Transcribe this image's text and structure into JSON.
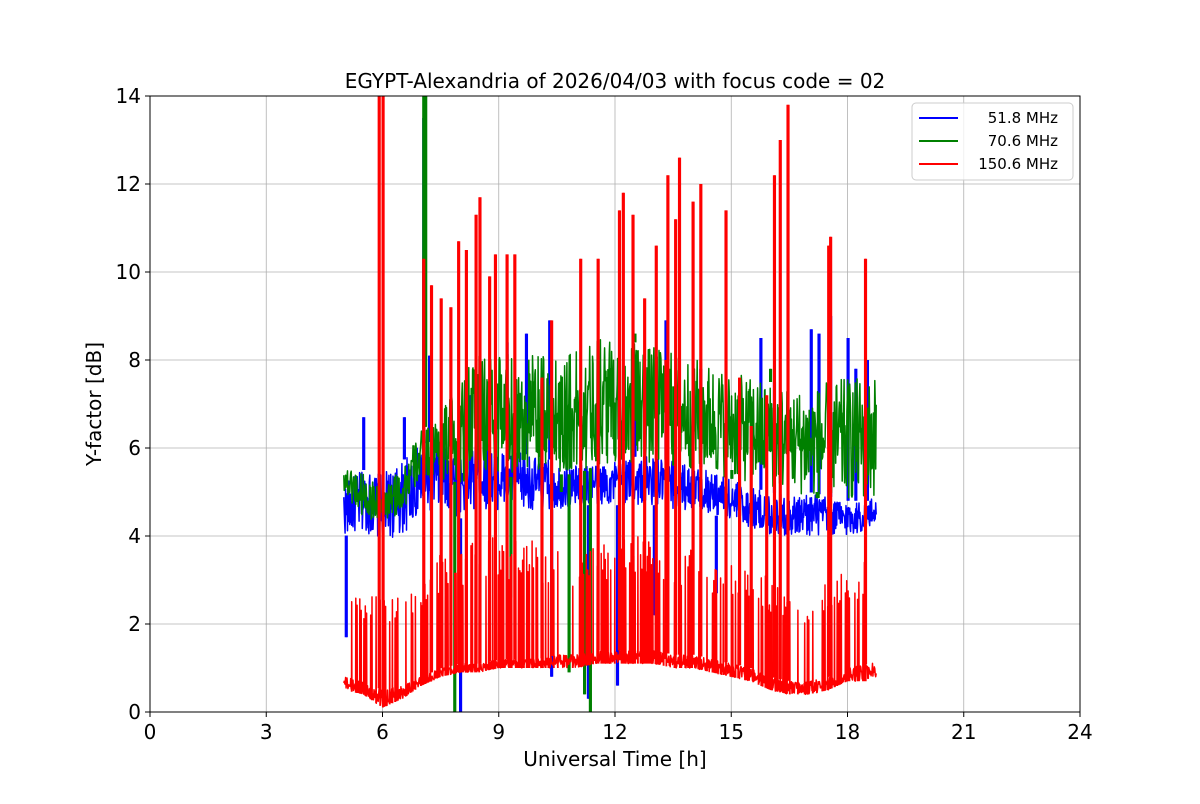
{
  "chart_data": {
    "type": "line",
    "title": "EGYPT-Alexandria of 2026/04/03 with focus code = 02",
    "xlabel": "Universal Time [h]",
    "ylabel": "Y-factor [dB]",
    "xlim": [
      0,
      24
    ],
    "ylim": [
      0,
      14
    ],
    "xticks": [
      0,
      3,
      6,
      9,
      12,
      15,
      18,
      21,
      24
    ],
    "yticks": [
      0,
      2,
      4,
      6,
      8,
      10,
      12,
      14
    ],
    "grid": true,
    "legend_position": "top-right",
    "series": [
      {
        "name": "51.8 MHz",
        "color": "#0000ff",
        "band": [
          [
            5.0,
            4.0,
            5.2
          ],
          [
            5.5,
            4.1,
            5.5
          ],
          [
            6.0,
            3.9,
            5.4
          ],
          [
            6.5,
            4.0,
            5.7
          ],
          [
            7.0,
            4.5,
            6.1
          ],
          [
            7.5,
            4.6,
            6.2
          ],
          [
            8.0,
            4.4,
            6.1
          ],
          [
            8.5,
            4.6,
            6.2
          ],
          [
            9.0,
            4.6,
            6.0
          ],
          [
            9.5,
            4.6,
            5.9
          ],
          [
            10.0,
            4.6,
            5.8
          ],
          [
            10.5,
            4.6,
            5.7
          ],
          [
            11.0,
            4.7,
            5.6
          ],
          [
            11.5,
            4.7,
            5.7
          ],
          [
            12.0,
            4.7,
            5.7
          ],
          [
            12.5,
            4.7,
            5.8
          ],
          [
            13.0,
            4.7,
            5.8
          ],
          [
            13.5,
            4.6,
            5.7
          ],
          [
            14.0,
            4.6,
            5.6
          ],
          [
            14.5,
            4.5,
            5.5
          ],
          [
            15.0,
            4.3,
            5.3
          ],
          [
            15.5,
            4.2,
            5.1
          ],
          [
            16.0,
            4.0,
            5.0
          ],
          [
            16.5,
            4.0,
            4.9
          ],
          [
            17.0,
            4.0,
            5.0
          ],
          [
            17.5,
            4.0,
            4.9
          ],
          [
            18.0,
            4.0,
            4.8
          ],
          [
            18.5,
            4.1,
            4.8
          ],
          [
            18.75,
            4.3,
            4.9
          ]
        ],
        "spikes": [
          [
            5.05,
            1.7
          ],
          [
            5.5,
            6.7
          ],
          [
            6.55,
            6.7
          ],
          [
            7.05,
            13.5
          ],
          [
            7.2,
            8.1
          ],
          [
            8.0,
            0.0
          ],
          [
            8.25,
            7.2
          ],
          [
            9.2,
            8.4
          ],
          [
            9.7,
            8.6
          ],
          [
            10.3,
            8.9
          ],
          [
            10.35,
            0.8
          ],
          [
            11.3,
            0.3
          ],
          [
            12.05,
            0.6
          ],
          [
            12.5,
            7.8
          ],
          [
            13.0,
            2.2
          ],
          [
            13.3,
            8.9
          ],
          [
            14.2,
            7.8
          ],
          [
            14.6,
            2.7
          ],
          [
            15.75,
            8.5
          ],
          [
            16.1,
            7.5
          ],
          [
            17.05,
            8.7
          ],
          [
            17.25,
            8.6
          ],
          [
            17.55,
            9.0
          ],
          [
            18.0,
            8.5
          ],
          [
            18.2,
            7.8
          ],
          [
            18.5,
            8.0
          ]
        ]
      },
      {
        "name": "70.6 MHz",
        "color": "#008000",
        "band": [
          [
            5.0,
            5.0,
            5.6
          ],
          [
            5.5,
            4.4,
            5.5
          ],
          [
            6.0,
            4.3,
            5.0
          ],
          [
            6.5,
            4.5,
            5.6
          ],
          [
            7.0,
            5.3,
            6.4
          ],
          [
            7.5,
            5.3,
            6.8
          ],
          [
            8.0,
            5.2,
            7.6
          ],
          [
            8.5,
            5.4,
            8.1
          ],
          [
            9.0,
            5.4,
            8.2
          ],
          [
            9.5,
            5.3,
            8.1
          ],
          [
            10.0,
            5.4,
            8.1
          ],
          [
            10.5,
            5.4,
            8.1
          ],
          [
            11.0,
            5.4,
            8.2
          ],
          [
            11.5,
            5.6,
            8.5
          ],
          [
            12.0,
            5.7,
            8.5
          ],
          [
            12.5,
            5.6,
            8.4
          ],
          [
            13.0,
            5.6,
            8.3
          ],
          [
            13.5,
            5.6,
            8.2
          ],
          [
            14.0,
            5.5,
            8.1
          ],
          [
            14.5,
            5.4,
            7.9
          ],
          [
            15.0,
            5.3,
            7.7
          ],
          [
            15.5,
            5.2,
            7.6
          ],
          [
            16.0,
            5.1,
            7.5
          ],
          [
            16.5,
            5.0,
            7.4
          ],
          [
            17.0,
            4.9,
            7.3
          ],
          [
            17.5,
            4.8,
            7.5
          ],
          [
            18.0,
            4.8,
            7.6
          ],
          [
            18.5,
            4.8,
            7.6
          ],
          [
            18.75,
            4.9,
            7.7
          ]
        ],
        "spikes": [
          [
            7.05,
            14.0
          ],
          [
            7.1,
            14.0
          ],
          [
            7.85,
            0.0
          ],
          [
            8.1,
            6.0
          ],
          [
            8.4,
            5.3
          ],
          [
            9.3,
            2.6
          ],
          [
            10.6,
            5.0
          ],
          [
            10.8,
            0.9
          ],
          [
            11.2,
            0.4
          ],
          [
            11.35,
            0.0
          ],
          [
            12.5,
            8.6
          ],
          [
            13.5,
            7.4
          ],
          [
            15.0,
            5.5
          ],
          [
            16.0,
            7.8
          ],
          [
            17.2,
            5.0
          ]
        ]
      },
      {
        "name": "150.6 MHz",
        "color": "#ff0000",
        "band": [
          [
            5.0,
            0.5,
            0.8
          ],
          [
            5.5,
            0.4,
            0.7
          ],
          [
            6.0,
            0.1,
            0.5
          ],
          [
            6.5,
            0.3,
            0.6
          ],
          [
            7.0,
            0.6,
            0.8
          ],
          [
            7.5,
            0.8,
            1.0
          ],
          [
            8.0,
            0.9,
            1.1
          ],
          [
            8.5,
            0.9,
            1.1
          ],
          [
            9.0,
            1.0,
            1.2
          ],
          [
            9.5,
            1.0,
            1.2
          ],
          [
            10.0,
            1.0,
            1.2
          ],
          [
            10.5,
            1.0,
            1.3
          ],
          [
            11.0,
            1.0,
            1.3
          ],
          [
            11.5,
            1.1,
            1.4
          ],
          [
            12.0,
            1.1,
            1.4
          ],
          [
            12.5,
            1.1,
            1.4
          ],
          [
            13.0,
            1.1,
            1.4
          ],
          [
            13.5,
            1.0,
            1.3
          ],
          [
            14.0,
            1.0,
            1.3
          ],
          [
            14.5,
            0.9,
            1.2
          ],
          [
            15.0,
            0.8,
            1.1
          ],
          [
            15.5,
            0.7,
            1.0
          ],
          [
            16.0,
            0.5,
            0.8
          ],
          [
            16.5,
            0.4,
            0.7
          ],
          [
            17.0,
            0.4,
            0.7
          ],
          [
            17.5,
            0.5,
            0.8
          ],
          [
            18.0,
            0.7,
            1.0
          ],
          [
            18.5,
            0.7,
            1.1
          ],
          [
            18.75,
            0.8,
            1.2
          ]
        ],
        "upper_band": [
          [
            5.2,
            2.8
          ],
          [
            5.7,
            2.7
          ],
          [
            6.3,
            2.7
          ],
          [
            6.8,
            3.0
          ],
          [
            7.2,
            3.3
          ],
          [
            7.5,
            3.6
          ],
          [
            8.0,
            3.8
          ],
          [
            8.5,
            3.9
          ],
          [
            9.0,
            4.0
          ],
          [
            9.5,
            4.0
          ],
          [
            10.0,
            3.9
          ],
          [
            10.5,
            3.8
          ],
          [
            11.0,
            3.8
          ],
          [
            11.5,
            3.8
          ],
          [
            12.0,
            4.0
          ],
          [
            12.5,
            4.0
          ],
          [
            13.0,
            3.9
          ],
          [
            13.5,
            3.8
          ],
          [
            14.0,
            3.7
          ],
          [
            14.5,
            3.6
          ],
          [
            15.0,
            3.5
          ],
          [
            15.5,
            3.4
          ],
          [
            16.0,
            3.0
          ],
          [
            16.5,
            2.6
          ],
          [
            17.0,
            2.6
          ],
          [
            17.5,
            3.0
          ],
          [
            18.0,
            3.3
          ],
          [
            18.5,
            3.5
          ]
        ],
        "spikes": [
          [
            5.9,
            14.0
          ],
          [
            6.0,
            14.0
          ],
          [
            7.05,
            10.3
          ],
          [
            7.25,
            9.7
          ],
          [
            7.5,
            9.4
          ],
          [
            7.75,
            9.2
          ],
          [
            7.95,
            10.7
          ],
          [
            8.15,
            10.5
          ],
          [
            8.4,
            11.3
          ],
          [
            8.5,
            11.7
          ],
          [
            8.75,
            9.9
          ],
          [
            8.9,
            10.4
          ],
          [
            9.2,
            10.4
          ],
          [
            9.4,
            10.4
          ],
          [
            10.1,
            7.6
          ],
          [
            10.35,
            8.9
          ],
          [
            11.1,
            10.3
          ],
          [
            11.55,
            10.3
          ],
          [
            12.1,
            11.4
          ],
          [
            12.2,
            11.8
          ],
          [
            12.45,
            11.3
          ],
          [
            12.75,
            9.4
          ],
          [
            13.05,
            10.6
          ],
          [
            13.3,
            8.0
          ],
          [
            13.35,
            12.2
          ],
          [
            13.55,
            11.2
          ],
          [
            13.65,
            12.6
          ],
          [
            14.0,
            11.6
          ],
          [
            14.2,
            12.0
          ],
          [
            14.85,
            11.4
          ],
          [
            15.2,
            7.6
          ],
          [
            15.5,
            6.5
          ],
          [
            15.9,
            7.2
          ],
          [
            16.1,
            12.2
          ],
          [
            16.25,
            13.0
          ],
          [
            16.45,
            13.8
          ],
          [
            17.5,
            10.6
          ],
          [
            17.55,
            10.8
          ],
          [
            18.45,
            10.3
          ]
        ]
      }
    ]
  }
}
